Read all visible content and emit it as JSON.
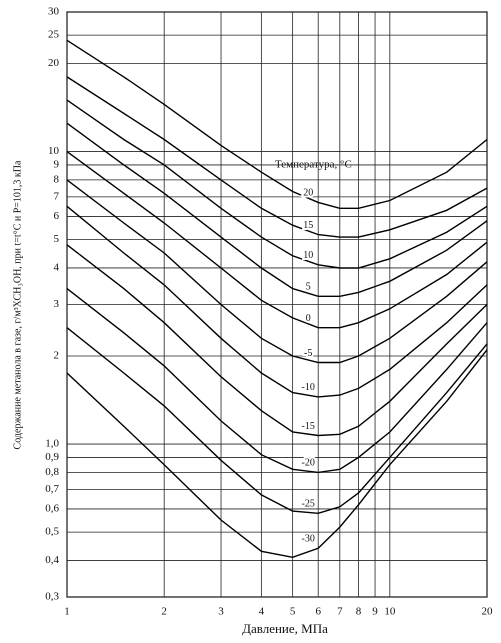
{
  "chart_data": {
    "type": "line",
    "legend_title": "Температура, °С",
    "xlabel": "Давление, МПа",
    "ylabel": "Содержание метанола в газе, г/м³ХСН₃ОН, при t=t°C и P=101,3 кПа",
    "xscale": "log",
    "yscale": "log",
    "grid": true,
    "xlim": [
      1,
      20
    ],
    "ylim": [
      0.3,
      30
    ],
    "xticks": [
      1,
      2,
      3,
      4,
      5,
      6,
      7,
      8,
      9,
      10,
      20
    ],
    "yticks": [
      {
        "value": 0.3,
        "label": "0,3"
      },
      {
        "value": 0.4,
        "label": "0,4"
      },
      {
        "value": 0.5,
        "label": "0,5"
      },
      {
        "value": 0.6,
        "label": "0,6"
      },
      {
        "value": 0.7,
        "label": "0,7"
      },
      {
        "value": 0.8,
        "label": "0,8"
      },
      {
        "value": 0.9,
        "label": "0,9"
      },
      {
        "value": 1,
        "label": "1,0"
      },
      2,
      3,
      4,
      5,
      6,
      7,
      8,
      9,
      10,
      20,
      25,
      30
    ],
    "x": [
      1,
      1.5,
      2,
      3,
      4,
      5,
      6,
      7,
      8,
      10,
      15,
      20
    ],
    "series": [
      {
        "name": "20",
        "color": "#000",
        "values": [
          24,
          18,
          14.5,
          10.5,
          8.5,
          7.3,
          6.7,
          6.4,
          6.4,
          6.8,
          8.5,
          11
        ]
      },
      {
        "name": "15",
        "color": "#000",
        "values": [
          18,
          13.5,
          11,
          8,
          6.4,
          5.6,
          5.2,
          5.1,
          5.1,
          5.4,
          6.3,
          7.5
        ]
      },
      {
        "name": "10",
        "color": "#000",
        "values": [
          15,
          11,
          9,
          6.4,
          5.1,
          4.4,
          4.1,
          4.0,
          4.0,
          4.3,
          5.3,
          6.5
        ]
      },
      {
        "name": "5",
        "color": "#000",
        "values": [
          12.5,
          9,
          7.2,
          5.1,
          4.0,
          3.4,
          3.2,
          3.2,
          3.3,
          3.6,
          4.6,
          5.8
        ]
      },
      {
        "name": "0",
        "color": "#000",
        "values": [
          10,
          7.2,
          5.7,
          4.0,
          3.1,
          2.7,
          2.5,
          2.5,
          2.6,
          2.9,
          3.8,
          4.9
        ]
      },
      {
        "name": "-5",
        "color": "#000",
        "values": [
          8,
          5.7,
          4.5,
          3.0,
          2.3,
          2.0,
          1.9,
          1.9,
          2.0,
          2.3,
          3.2,
          4.2
        ]
      },
      {
        "name": "-10",
        "color": "#000",
        "values": [
          6.5,
          4.5,
          3.5,
          2.3,
          1.75,
          1.5,
          1.45,
          1.47,
          1.55,
          1.8,
          2.6,
          3.5
        ]
      },
      {
        "name": "-15",
        "color": "#000",
        "values": [
          4.8,
          3.4,
          2.6,
          1.7,
          1.3,
          1.1,
          1.07,
          1.08,
          1.15,
          1.4,
          2.2,
          3.0
        ]
      },
      {
        "name": "-20",
        "color": "#000",
        "values": [
          3.4,
          2.4,
          1.85,
          1.2,
          0.92,
          0.82,
          0.8,
          0.82,
          0.9,
          1.1,
          1.8,
          2.6
        ]
      },
      {
        "name": "-25",
        "color": "#000",
        "values": [
          2.5,
          1.75,
          1.35,
          0.88,
          0.67,
          0.59,
          0.58,
          0.61,
          0.68,
          0.9,
          1.5,
          2.2
        ]
      },
      {
        "name": "-30",
        "color": "#000",
        "values": [
          1.75,
          1.15,
          0.85,
          0.55,
          0.43,
          0.41,
          0.44,
          0.52,
          0.62,
          0.85,
          1.4,
          2.1
        ]
      }
    ]
  }
}
